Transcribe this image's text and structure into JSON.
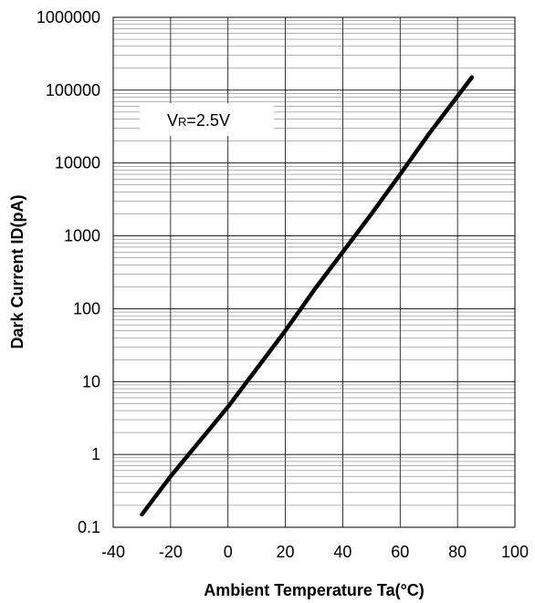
{
  "chart_data": {
    "type": "line",
    "title": "",
    "xlabel": "Ambient Temperature Ta(°C)",
    "ylabel": "Dark Current ID(pA)",
    "xlim": [
      -40,
      100
    ],
    "ylim": [
      0.1,
      1000000
    ],
    "yscale": "log",
    "grid": true,
    "x_ticks": [
      -40,
      -20,
      0,
      20,
      40,
      60,
      80,
      100
    ],
    "x_tick_labels": [
      "-40",
      "-20",
      "0",
      "20",
      "40",
      "60",
      "80",
      "100"
    ],
    "y_ticks": [
      0.1,
      1,
      10,
      100,
      1000,
      10000,
      100000,
      1000000
    ],
    "y_tick_labels": [
      "0.1",
      "1",
      "10",
      "100",
      "1000",
      "10000",
      "100000",
      "1000000"
    ],
    "annotation": {
      "prefix": "V",
      "subscript": "R",
      "suffix": "=2.5V"
    },
    "series": [
      {
        "x": [
          -30,
          -20,
          -10,
          0,
          10,
          20,
          30,
          40,
          50,
          60,
          70,
          85
        ],
        "y": [
          0.15,
          0.5,
          1.5,
          4.5,
          15,
          50,
          180,
          600,
          2000,
          7000,
          25000,
          150000
        ],
        "color": "#000000"
      }
    ]
  }
}
